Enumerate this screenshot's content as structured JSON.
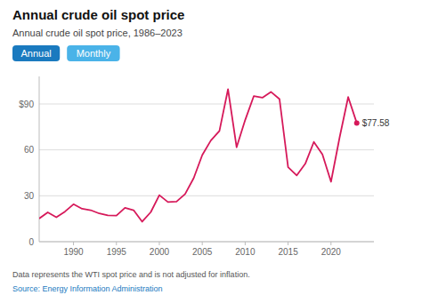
{
  "chart_data": {
    "type": "line",
    "title": "Annual crude oil spot price",
    "subtitle": "Annual crude oil spot price, 1986–2023",
    "footnote": "Data represents the WTI spot price and is not adjusted for inflation.",
    "source": "Source: Energy Information Administration",
    "buttons": [
      {
        "label": "Annual",
        "color": "#1a7abf"
      },
      {
        "label": "Monthly",
        "color": "#4ab3e8"
      }
    ],
    "color": "#d6195a",
    "x": [
      1986,
      1987,
      1988,
      1989,
      1990,
      1991,
      1992,
      1993,
      1994,
      1995,
      1996,
      1997,
      1998,
      1999,
      2000,
      2001,
      2002,
      2003,
      2004,
      2005,
      2006,
      2007,
      2008,
      2009,
      2010,
      2011,
      2012,
      2013,
      2014,
      2015,
      2016,
      2017,
      2018,
      2019,
      2020,
      2021,
      2022,
      2023
    ],
    "values": [
      15.1,
      19.2,
      15.97,
      19.64,
      24.5,
      21.5,
      20.6,
      18.45,
      17.2,
      17.02,
      22.1,
      20.6,
      13.1,
      19.3,
      30.4,
      25.9,
      26.2,
      31.1,
      41.5,
      56.6,
      66.1,
      72.4,
      99.6,
      61.7,
      79.5,
      95.1,
      94.1,
      97.9,
      93.2,
      48.7,
      43.3,
      50.9,
      65.2,
      57.0,
      39.2,
      68.1,
      94.5,
      77.58
    ],
    "xlim": [
      1986,
      2025
    ],
    "ylim": [
      0,
      108
    ],
    "xticks": [
      1990,
      1995,
      2000,
      2005,
      2010,
      2015,
      2020
    ],
    "yticks": [
      0,
      30,
      60,
      {
        "value": 90,
        "label": "$90"
      }
    ],
    "grid": true,
    "annotations": [
      {
        "text": "$77.58",
        "x": 2023,
        "y": 77.58
      }
    ]
  }
}
